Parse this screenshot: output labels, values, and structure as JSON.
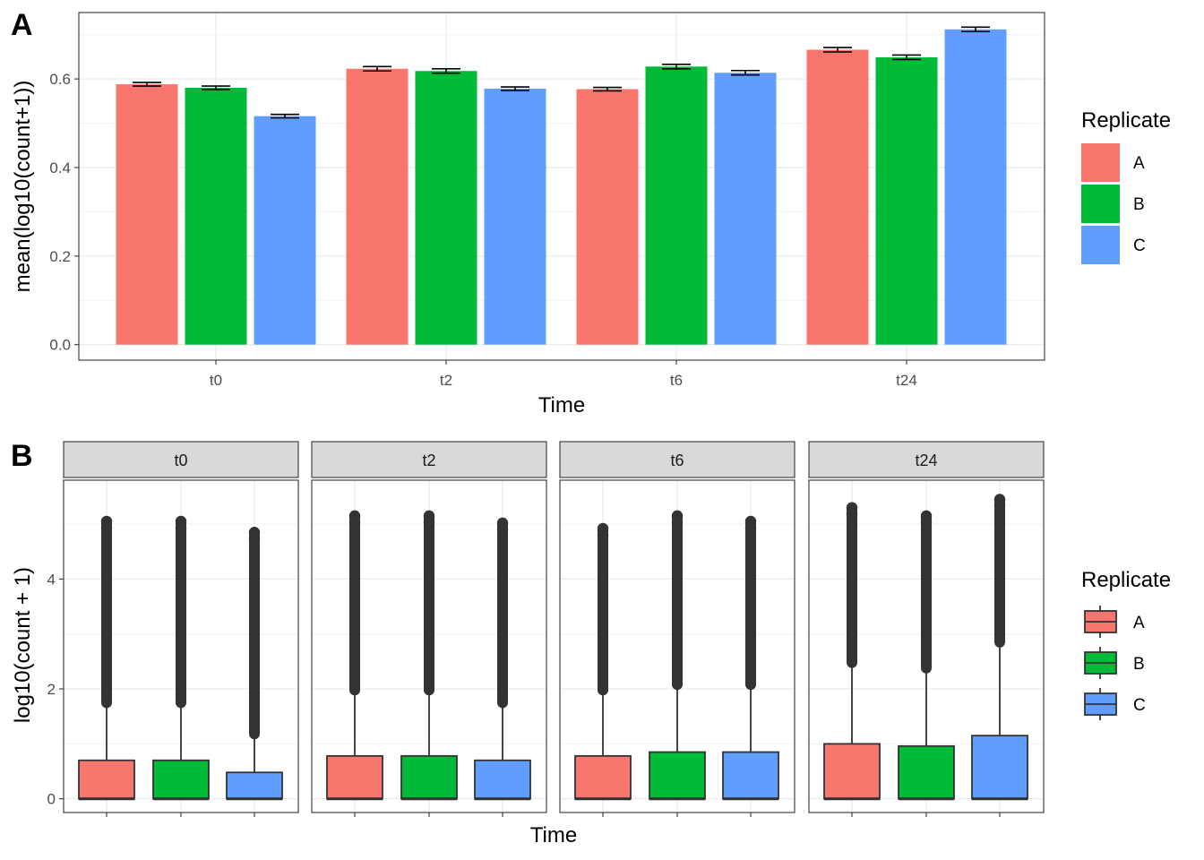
{
  "chart_data": [
    {
      "panel": "A",
      "type": "bar",
      "xlabel": "Time",
      "ylabel": "mean(log10(count+1))",
      "categories": [
        "t0",
        "t2",
        "t6",
        "t24"
      ],
      "ylim": [
        -0.035,
        0.75
      ],
      "yticks": [
        "0.0",
        "0.2",
        "0.4",
        "0.6"
      ],
      "grid": true,
      "legend": {
        "title": "Replicate",
        "position": "right",
        "entries": [
          "A",
          "B",
          "C"
        ]
      },
      "series": [
        {
          "name": "A",
          "color": "#F8766D",
          "values": [
            0.588,
            0.623,
            0.577,
            0.666
          ]
        },
        {
          "name": "B",
          "color": "#00BA38",
          "values": [
            0.58,
            0.618,
            0.628,
            0.649
          ]
        },
        {
          "name": "C",
          "color": "#619CFF",
          "values": [
            0.516,
            0.578,
            0.614,
            0.712
          ]
        }
      ],
      "error_half_width": [
        [
          0.004,
          0.005,
          0.004,
          0.005
        ],
        [
          0.004,
          0.005,
          0.005,
          0.005
        ],
        [
          0.004,
          0.004,
          0.005,
          0.005
        ]
      ]
    },
    {
      "panel": "B",
      "type": "boxplot",
      "xlabel": "Time",
      "ylabel": "log10(count + 1)",
      "facets": [
        "t0",
        "t2",
        "t6",
        "t24"
      ],
      "ylim": [
        -0.25,
        5.8
      ],
      "yticks": [
        "0",
        "2",
        "4"
      ],
      "grid": true,
      "legend": {
        "title": "Replicate",
        "position": "right",
        "entries": [
          "A",
          "B",
          "C"
        ]
      },
      "series": [
        {
          "name": "A",
          "color": "#F8766D"
        },
        {
          "name": "B",
          "color": "#00BA38"
        },
        {
          "name": "C",
          "color": "#619CFF"
        }
      ],
      "boxes": {
        "t0": [
          {
            "min": 0,
            "q1": 0,
            "median": 0,
            "q3": 0.7,
            "whisker_hi": 1.72,
            "outliers_top": 5.05
          },
          {
            "min": 0,
            "q1": 0,
            "median": 0,
            "q3": 0.7,
            "whisker_hi": 1.72,
            "outliers_top": 5.05
          },
          {
            "min": 0,
            "q1": 0,
            "median": 0,
            "q3": 0.48,
            "whisker_hi": 1.15,
            "outliers_top": 4.85
          }
        ],
        "t2": [
          {
            "min": 0,
            "q1": 0,
            "median": 0,
            "q3": 0.78,
            "whisker_hi": 1.95,
            "outliers_top": 5.15
          },
          {
            "min": 0,
            "q1": 0,
            "median": 0,
            "q3": 0.78,
            "whisker_hi": 1.95,
            "outliers_top": 5.15
          },
          {
            "min": 0,
            "q1": 0,
            "median": 0,
            "q3": 0.7,
            "whisker_hi": 1.72,
            "outliers_top": 5.02
          }
        ],
        "t6": [
          {
            "min": 0,
            "q1": 0,
            "median": 0,
            "q3": 0.78,
            "whisker_hi": 1.95,
            "outliers_top": 4.92
          },
          {
            "min": 0,
            "q1": 0,
            "median": 0,
            "q3": 0.85,
            "whisker_hi": 2.05,
            "outliers_top": 5.15
          },
          {
            "min": 0,
            "q1": 0,
            "median": 0,
            "q3": 0.85,
            "whisker_hi": 2.05,
            "outliers_top": 5.05
          }
        ],
        "t24": [
          {
            "min": 0,
            "q1": 0,
            "median": 0,
            "q3": 1.0,
            "whisker_hi": 2.45,
            "outliers_top": 5.3
          },
          {
            "min": 0,
            "q1": 0,
            "median": 0,
            "q3": 0.96,
            "whisker_hi": 2.35,
            "outliers_top": 5.15
          },
          {
            "min": 0,
            "q1": 0,
            "median": 0,
            "q3": 1.15,
            "whisker_hi": 2.82,
            "outliers_top": 5.45
          }
        ]
      }
    }
  ]
}
